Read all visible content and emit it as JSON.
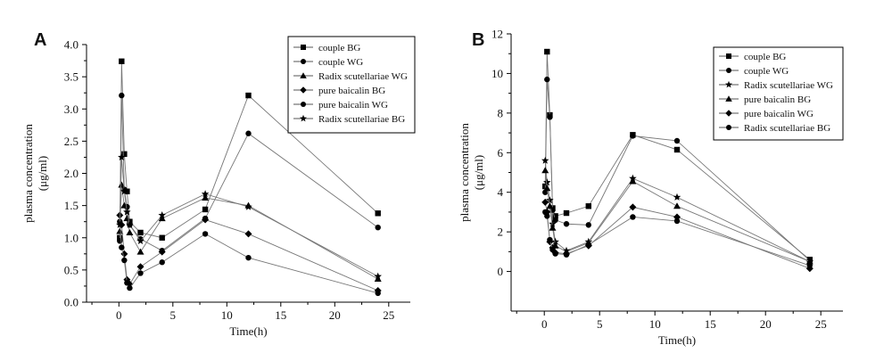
{
  "chart_data": [
    {
      "type": "line",
      "panel_label": "A",
      "xlabel": "Time(h)",
      "ylabel": "plasma concentration (μg/ml)",
      "ylabel_lines": [
        "plasma concentration",
        "(μg/ml)"
      ],
      "xlim": [
        -3,
        27
      ],
      "ylim": [
        0,
        4.0
      ],
      "xticks": [
        0,
        5,
        10,
        15,
        20,
        25
      ],
      "yticks": [
        0,
        0.5,
        1.0,
        1.5,
        2.0,
        2.5,
        3.0,
        3.5,
        4.0
      ],
      "xtick_labels": [
        "0",
        "5",
        "10",
        "15",
        "20",
        "25"
      ],
      "ytick_labels": [
        "0.0",
        "0.5",
        "1.0",
        "1.5",
        "2.0",
        "2.5",
        "3.0",
        "3.5",
        "4.0"
      ],
      "legend_position": "top-right",
      "grid": false,
      "series": [
        {
          "name": "couple BG",
          "marker": "square",
          "x": [
            0.083,
            0.25,
            0.5,
            0.75,
            1,
            2,
            4,
            8,
            12,
            24
          ],
          "y": [
            1.0,
            3.74,
            2.3,
            1.72,
            1.25,
            1.08,
            1.0,
            1.44,
            3.21,
            1.38
          ]
        },
        {
          "name": "couple WG",
          "marker": "circle",
          "x": [
            0.083,
            0.25,
            0.5,
            0.75,
            1,
            2,
            4,
            8,
            12,
            24
          ],
          "y": [
            0.95,
            3.21,
            1.75,
            1.48,
            1.2,
            0.98,
            0.8,
            1.3,
            2.62,
            1.16
          ]
        },
        {
          "name": "Radix scutellariae WG",
          "marker": "triangle",
          "x": [
            0.083,
            0.25,
            0.5,
            0.75,
            1,
            2,
            4,
            8,
            12,
            24
          ],
          "y": [
            1.1,
            1.82,
            1.5,
            1.3,
            1.08,
            0.78,
            1.3,
            1.62,
            1.5,
            0.36
          ]
        },
        {
          "name": "pure baicalin BG",
          "marker": "diamond",
          "x": [
            0.083,
            0.25,
            0.5,
            0.75,
            1,
            2,
            4,
            8,
            12,
            24
          ],
          "y": [
            1.35,
            1.2,
            0.75,
            0.35,
            0.28,
            0.55,
            0.78,
            1.28,
            1.06,
            0.18
          ]
        },
        {
          "name": "pure baicalin WG",
          "marker": "circle",
          "x": [
            0.083,
            0.25,
            0.5,
            0.75,
            1,
            2,
            4,
            8,
            12,
            24
          ],
          "y": [
            1.25,
            0.85,
            0.65,
            0.3,
            0.22,
            0.45,
            0.62,
            1.06,
            0.69,
            0.14
          ]
        },
        {
          "name": "Radix scutellariae BG",
          "marker": "star",
          "x": [
            0.083,
            0.25,
            0.5,
            0.75,
            1,
            2,
            4,
            8,
            12,
            24
          ],
          "y": [
            1.2,
            2.25,
            1.72,
            1.4,
            1.2,
            0.95,
            1.35,
            1.68,
            1.48,
            0.4
          ]
        }
      ]
    },
    {
      "type": "line",
      "panel_label": "B",
      "xlabel": "Time(h)",
      "ylabel": "plasma concentration (μg/ml)",
      "ylabel_lines": [
        "plasma concentration",
        "(μg/ml)"
      ],
      "xlim": [
        -3,
        27
      ],
      "ylim": [
        -2,
        12
      ],
      "xticks": [
        0,
        5,
        10,
        15,
        20,
        25
      ],
      "yticks": [
        0,
        2,
        4,
        6,
        8,
        10,
        12
      ],
      "xtick_labels": [
        "0",
        "5",
        "10",
        "15",
        "20",
        "25"
      ],
      "ytick_labels": [
        "0",
        "2",
        "4",
        "6",
        "8",
        "10",
        "12"
      ],
      "legend_position": "top-right",
      "grid": false,
      "series": [
        {
          "name": "couple BG",
          "marker": "square",
          "x": [
            0.083,
            0.25,
            0.5,
            0.75,
            1,
            2,
            4,
            8,
            12,
            24
          ],
          "y": [
            4.3,
            11.1,
            7.9,
            3.2,
            2.8,
            2.95,
            3.3,
            6.9,
            6.15,
            0.6
          ]
        },
        {
          "name": "couple WG",
          "marker": "circle",
          "x": [
            0.083,
            0.25,
            0.5,
            0.75,
            1,
            2,
            4,
            8,
            12,
            24
          ],
          "y": [
            4.0,
            9.7,
            7.8,
            3.1,
            2.6,
            2.4,
            2.35,
            6.85,
            6.6,
            0.55
          ]
        },
        {
          "name": "Radix scutellariae WG",
          "marker": "star",
          "x": [
            0.083,
            0.25,
            0.5,
            0.75,
            1,
            2,
            4,
            8,
            12,
            24
          ],
          "y": [
            5.6,
            4.5,
            3.6,
            2.4,
            1.5,
            1.05,
            1.5,
            4.7,
            3.75,
            0.5
          ]
        },
        {
          "name": "pure baicalin BG",
          "marker": "triangle",
          "x": [
            0.083,
            0.25,
            0.5,
            0.75,
            1,
            2,
            4,
            8,
            12,
            24
          ],
          "y": [
            5.1,
            4.2,
            3.3,
            2.2,
            1.3,
            1.0,
            1.45,
            4.55,
            3.3,
            0.5
          ]
        },
        {
          "name": "pure baicalin WG",
          "marker": "diamond",
          "x": [
            0.083,
            0.25,
            0.5,
            0.75,
            1,
            2,
            4,
            8,
            12,
            24
          ],
          "y": [
            3.5,
            3.0,
            1.5,
            1.2,
            0.95,
            0.9,
            1.3,
            3.25,
            2.75,
            0.15
          ]
        },
        {
          "name": "Radix scutellariae BG",
          "marker": "circle",
          "x": [
            0.083,
            0.25,
            0.5,
            0.75,
            1,
            2,
            4,
            8,
            12,
            24
          ],
          "y": [
            3.0,
            2.8,
            1.6,
            1.1,
            0.9,
            0.85,
            1.35,
            2.75,
            2.55,
            0.3
          ]
        }
      ]
    }
  ]
}
